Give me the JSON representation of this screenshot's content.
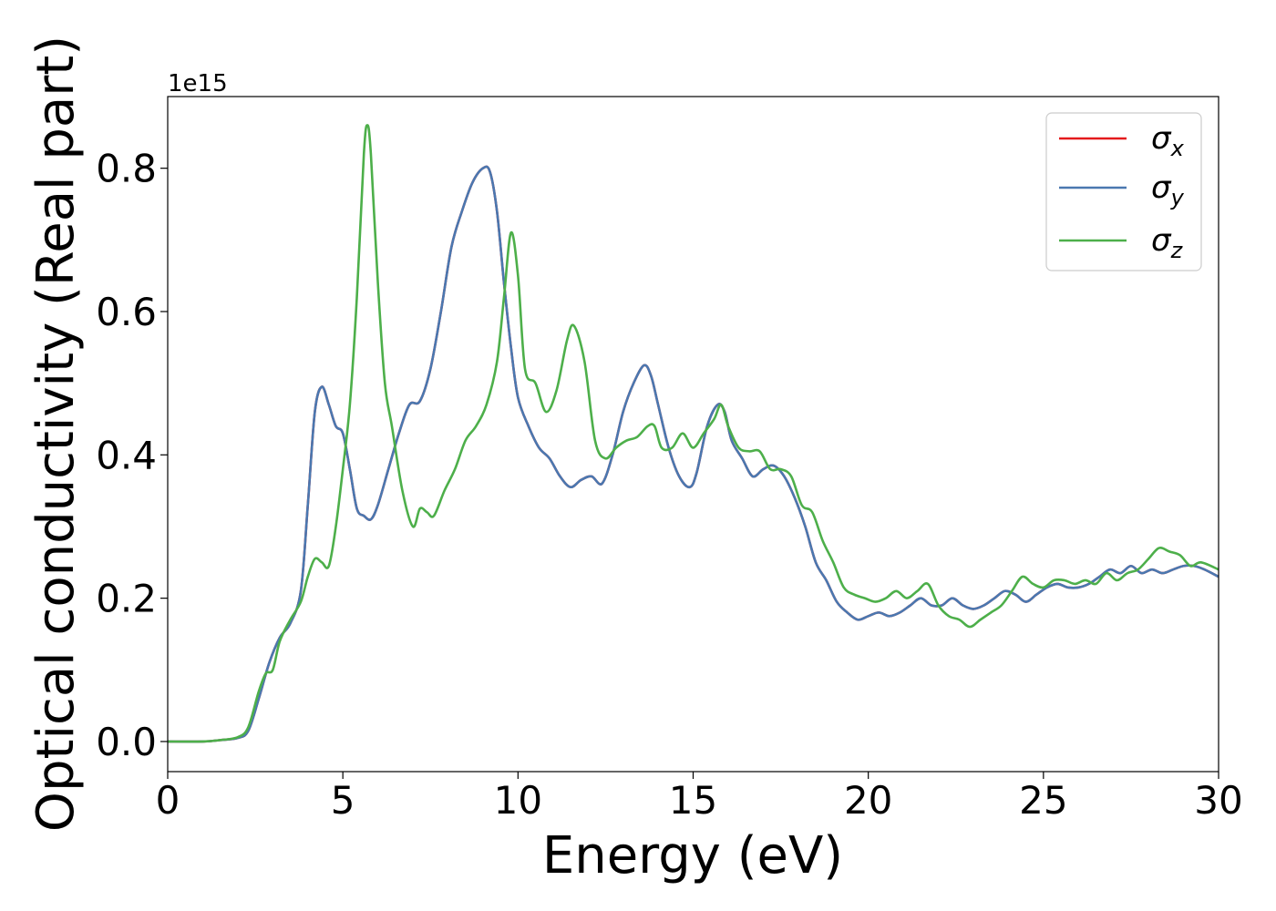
{
  "chart_data": {
    "type": "line",
    "title": "",
    "xlabel": "Energy (eV)",
    "ylabel": "Optical conductivity (Real part)",
    "y_offset_label": "1e15",
    "xlim": [
      0,
      30
    ],
    "ylim": [
      -0.042,
      0.9
    ],
    "xticks": [
      0,
      5,
      10,
      15,
      20,
      25,
      30
    ],
    "xtick_labels": [
      "0",
      "5",
      "10",
      "15",
      "20",
      "25",
      "30"
    ],
    "yticks": [
      0.0,
      0.2,
      0.4,
      0.6,
      0.8
    ],
    "ytick_labels": [
      "0.0",
      "0.2",
      "0.4",
      "0.6",
      "0.8"
    ],
    "grid": false,
    "legend_position": "top-right",
    "series": [
      {
        "name": "σx",
        "legend_main": "σ",
        "legend_sub": "x",
        "color": "#e41a1c",
        "x": [
          0,
          1,
          1.5,
          2.0,
          2.3,
          2.6,
          2.9,
          3.2,
          3.5,
          3.8,
          4.0,
          4.2,
          4.4,
          4.6,
          4.8,
          5.0,
          5.2,
          5.4,
          5.6,
          5.8,
          6.0,
          6.3,
          6.6,
          6.9,
          7.2,
          7.5,
          7.8,
          8.1,
          8.4,
          8.7,
          9.0,
          9.2,
          9.4,
          9.6,
          9.8,
          10.0,
          10.3,
          10.6,
          10.9,
          11.2,
          11.5,
          11.8,
          12.1,
          12.4,
          12.7,
          13.0,
          13.3,
          13.6,
          13.8,
          14.0,
          14.3,
          14.6,
          14.9,
          15.1,
          15.4,
          15.7,
          15.9,
          16.1,
          16.4,
          16.7,
          17.0,
          17.3,
          17.6,
          17.9,
          18.2,
          18.5,
          18.8,
          19.1,
          19.4,
          19.7,
          20.0,
          20.3,
          20.6,
          20.9,
          21.2,
          21.5,
          21.8,
          22.1,
          22.4,
          22.7,
          23.0,
          23.3,
          23.6,
          23.9,
          24.2,
          24.5,
          24.8,
          25.1,
          25.4,
          25.7,
          26.0,
          26.3,
          26.6,
          26.9,
          27.2,
          27.5,
          27.8,
          28.1,
          28.4,
          28.7,
          29.0,
          29.3,
          29.6,
          30.0
        ],
        "y": [
          0.0,
          0.0,
          0.002,
          0.005,
          0.015,
          0.06,
          0.11,
          0.145,
          0.165,
          0.21,
          0.33,
          0.46,
          0.495,
          0.47,
          0.44,
          0.43,
          0.38,
          0.325,
          0.315,
          0.31,
          0.33,
          0.38,
          0.43,
          0.47,
          0.475,
          0.52,
          0.6,
          0.69,
          0.74,
          0.78,
          0.8,
          0.795,
          0.74,
          0.64,
          0.55,
          0.48,
          0.44,
          0.41,
          0.395,
          0.37,
          0.355,
          0.365,
          0.37,
          0.36,
          0.4,
          0.46,
          0.5,
          0.525,
          0.51,
          0.47,
          0.41,
          0.37,
          0.355,
          0.375,
          0.44,
          0.47,
          0.46,
          0.42,
          0.395,
          0.37,
          0.38,
          0.385,
          0.37,
          0.34,
          0.3,
          0.25,
          0.225,
          0.195,
          0.18,
          0.17,
          0.175,
          0.18,
          0.175,
          0.18,
          0.19,
          0.2,
          0.19,
          0.19,
          0.2,
          0.19,
          0.185,
          0.19,
          0.2,
          0.21,
          0.205,
          0.195,
          0.205,
          0.215,
          0.22,
          0.215,
          0.215,
          0.22,
          0.23,
          0.24,
          0.235,
          0.245,
          0.235,
          0.24,
          0.235,
          0.24,
          0.245,
          0.245,
          0.24,
          0.23
        ]
      },
      {
        "name": "σy",
        "legend_main": "σ",
        "legend_sub": "y",
        "color": "#4a78b0",
        "x": [
          0,
          1,
          1.5,
          2.0,
          2.3,
          2.6,
          2.9,
          3.2,
          3.5,
          3.8,
          4.0,
          4.2,
          4.4,
          4.6,
          4.8,
          5.0,
          5.2,
          5.4,
          5.6,
          5.8,
          6.0,
          6.3,
          6.6,
          6.9,
          7.2,
          7.5,
          7.8,
          8.1,
          8.4,
          8.7,
          9.0,
          9.2,
          9.4,
          9.6,
          9.8,
          10.0,
          10.3,
          10.6,
          10.9,
          11.2,
          11.5,
          11.8,
          12.1,
          12.4,
          12.7,
          13.0,
          13.3,
          13.6,
          13.8,
          14.0,
          14.3,
          14.6,
          14.9,
          15.1,
          15.4,
          15.7,
          15.9,
          16.1,
          16.4,
          16.7,
          17.0,
          17.3,
          17.6,
          17.9,
          18.2,
          18.5,
          18.8,
          19.1,
          19.4,
          19.7,
          20.0,
          20.3,
          20.6,
          20.9,
          21.2,
          21.5,
          21.8,
          22.1,
          22.4,
          22.7,
          23.0,
          23.3,
          23.6,
          23.9,
          24.2,
          24.5,
          24.8,
          25.1,
          25.4,
          25.7,
          26.0,
          26.3,
          26.6,
          26.9,
          27.2,
          27.5,
          27.8,
          28.1,
          28.4,
          28.7,
          29.0,
          29.3,
          29.6,
          30.0
        ],
        "y": [
          0.0,
          0.0,
          0.002,
          0.005,
          0.015,
          0.06,
          0.11,
          0.145,
          0.165,
          0.21,
          0.33,
          0.46,
          0.495,
          0.47,
          0.44,
          0.43,
          0.38,
          0.325,
          0.315,
          0.31,
          0.33,
          0.38,
          0.43,
          0.47,
          0.475,
          0.52,
          0.6,
          0.69,
          0.74,
          0.78,
          0.8,
          0.795,
          0.74,
          0.64,
          0.55,
          0.48,
          0.44,
          0.41,
          0.395,
          0.37,
          0.355,
          0.365,
          0.37,
          0.36,
          0.4,
          0.46,
          0.5,
          0.525,
          0.51,
          0.47,
          0.41,
          0.37,
          0.355,
          0.375,
          0.44,
          0.47,
          0.46,
          0.42,
          0.395,
          0.37,
          0.38,
          0.385,
          0.37,
          0.34,
          0.3,
          0.25,
          0.225,
          0.195,
          0.18,
          0.17,
          0.175,
          0.18,
          0.175,
          0.18,
          0.19,
          0.2,
          0.19,
          0.19,
          0.2,
          0.19,
          0.185,
          0.19,
          0.2,
          0.21,
          0.205,
          0.195,
          0.205,
          0.215,
          0.22,
          0.215,
          0.215,
          0.22,
          0.23,
          0.24,
          0.235,
          0.245,
          0.235,
          0.24,
          0.235,
          0.24,
          0.245,
          0.245,
          0.24,
          0.23
        ]
      },
      {
        "name": "σz",
        "legend_main": "σ",
        "legend_sub": "z",
        "color": "#4daf4a",
        "x": [
          0,
          1,
          1.5,
          2.0,
          2.3,
          2.6,
          2.8,
          3.0,
          3.2,
          3.5,
          3.8,
          4.0,
          4.2,
          4.4,
          4.6,
          4.8,
          5.0,
          5.2,
          5.4,
          5.6,
          5.7,
          5.8,
          6.0,
          6.2,
          6.4,
          6.7,
          7.0,
          7.2,
          7.4,
          7.6,
          7.9,
          8.2,
          8.5,
          8.8,
          9.1,
          9.4,
          9.6,
          9.8,
          10.0,
          10.2,
          10.5,
          10.8,
          11.1,
          11.4,
          11.6,
          11.9,
          12.2,
          12.5,
          12.8,
          13.1,
          13.4,
          13.7,
          13.9,
          14.1,
          14.4,
          14.7,
          15.0,
          15.3,
          15.6,
          15.8,
          16.0,
          16.3,
          16.6,
          16.9,
          17.2,
          17.5,
          17.8,
          18.1,
          18.4,
          18.7,
          19.0,
          19.3,
          19.6,
          19.9,
          20.2,
          20.5,
          20.8,
          21.1,
          21.4,
          21.7,
          22.0,
          22.3,
          22.6,
          22.9,
          23.2,
          23.5,
          23.8,
          24.1,
          24.4,
          24.7,
          25.0,
          25.3,
          25.6,
          25.9,
          26.2,
          26.5,
          26.8,
          27.1,
          27.4,
          27.7,
          28.0,
          28.3,
          28.6,
          28.9,
          29.2,
          29.5,
          30.0
        ],
        "y": [
          0.0,
          0.0,
          0.002,
          0.006,
          0.02,
          0.07,
          0.095,
          0.1,
          0.14,
          0.17,
          0.195,
          0.23,
          0.255,
          0.25,
          0.245,
          0.3,
          0.38,
          0.47,
          0.62,
          0.82,
          0.86,
          0.82,
          0.64,
          0.5,
          0.44,
          0.35,
          0.3,
          0.325,
          0.32,
          0.315,
          0.35,
          0.38,
          0.42,
          0.44,
          0.47,
          0.53,
          0.62,
          0.71,
          0.65,
          0.52,
          0.5,
          0.46,
          0.49,
          0.56,
          0.58,
          0.53,
          0.42,
          0.395,
          0.41,
          0.42,
          0.425,
          0.44,
          0.44,
          0.41,
          0.41,
          0.43,
          0.41,
          0.43,
          0.45,
          0.47,
          0.44,
          0.41,
          0.405,
          0.405,
          0.38,
          0.38,
          0.37,
          0.33,
          0.32,
          0.28,
          0.25,
          0.215,
          0.205,
          0.2,
          0.195,
          0.2,
          0.21,
          0.2,
          0.21,
          0.22,
          0.19,
          0.175,
          0.17,
          0.16,
          0.17,
          0.18,
          0.19,
          0.21,
          0.23,
          0.22,
          0.215,
          0.225,
          0.225,
          0.22,
          0.225,
          0.22,
          0.235,
          0.225,
          0.235,
          0.24,
          0.255,
          0.27,
          0.265,
          0.26,
          0.245,
          0.25,
          0.24
        ]
      }
    ]
  }
}
